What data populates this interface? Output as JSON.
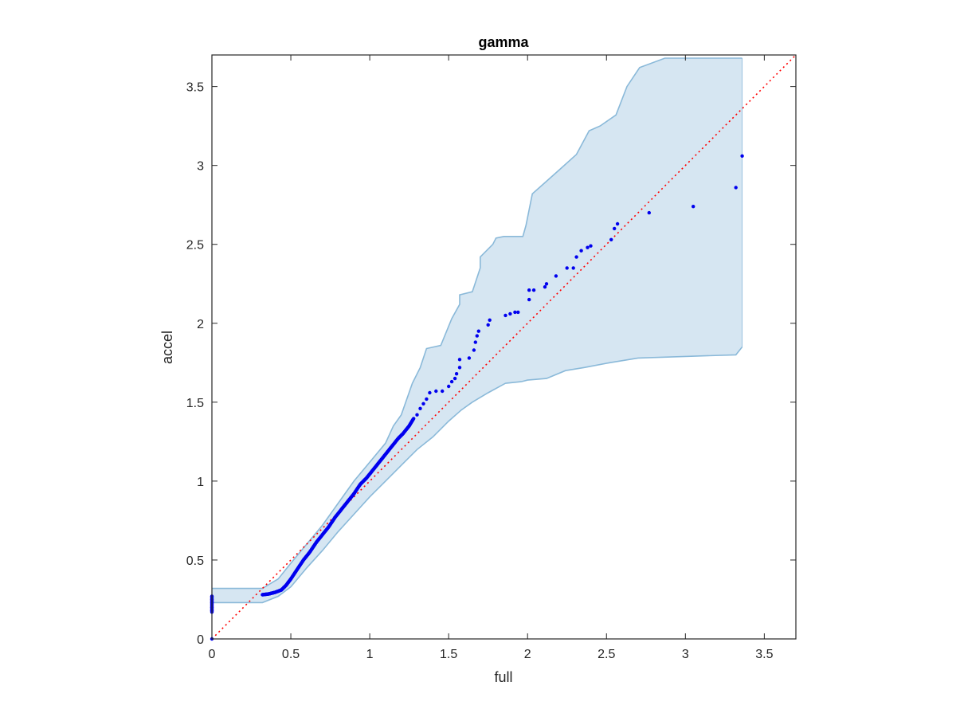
{
  "chart_data": {
    "type": "scatter",
    "title": "gamma",
    "xlabel": "full",
    "ylabel": "accel",
    "xlim": [
      0,
      3.7
    ],
    "ylim": [
      0,
      3.7
    ],
    "xticks": [
      0,
      0.5,
      1,
      1.5,
      2,
      2.5,
      3,
      3.5
    ],
    "yticks": [
      0,
      0.5,
      1,
      1.5,
      2,
      2.5,
      3,
      3.5
    ],
    "xtick_labels": [
      "0",
      "0.5",
      "1",
      "1.5",
      "2",
      "2.5",
      "3",
      "3.5"
    ],
    "ytick_labels": [
      "0",
      "0.5",
      "1",
      "1.5",
      "2",
      "2.5",
      "3",
      "3.5"
    ],
    "grid": false,
    "colors": {
      "points": "#0000ee",
      "band_fill": "#d6e6f2",
      "band_edge": "#8ab9d9",
      "reference_line": "#ff0000",
      "axes": "#262626"
    },
    "reference_line": {
      "style": "dotted",
      "from": [
        0,
        0
      ],
      "to": [
        3.7,
        3.7
      ]
    },
    "confidence_band": {
      "upper": [
        [
          0,
          0.32
        ],
        [
          0.32,
          0.32
        ],
        [
          0.42,
          0.38
        ],
        [
          0.5,
          0.48
        ],
        [
          0.6,
          0.6
        ],
        [
          0.7,
          0.72
        ],
        [
          0.8,
          0.86
        ],
        [
          0.9,
          1.0
        ],
        [
          1.0,
          1.12
        ],
        [
          1.1,
          1.24
        ],
        [
          1.15,
          1.35
        ],
        [
          1.2,
          1.42
        ],
        [
          1.27,
          1.62
        ],
        [
          1.32,
          1.72
        ],
        [
          1.36,
          1.84
        ],
        [
          1.45,
          1.86
        ],
        [
          1.52,
          2.03
        ],
        [
          1.57,
          2.12
        ],
        [
          1.57,
          2.18
        ],
        [
          1.65,
          2.2
        ],
        [
          1.7,
          2.35
        ],
        [
          1.7,
          2.42
        ],
        [
          1.78,
          2.5
        ],
        [
          1.8,
          2.54
        ],
        [
          1.85,
          2.55
        ],
        [
          1.97,
          2.55
        ],
        [
          1.99,
          2.62
        ],
        [
          2.01,
          2.72
        ],
        [
          2.03,
          2.82
        ],
        [
          2.12,
          2.9
        ],
        [
          2.21,
          2.98
        ],
        [
          2.31,
          3.07
        ],
        [
          2.39,
          3.22
        ],
        [
          2.46,
          3.25
        ],
        [
          2.56,
          3.32
        ],
        [
          2.63,
          3.5
        ],
        [
          2.71,
          3.62
        ],
        [
          2.87,
          3.68
        ],
        [
          3.36,
          3.68
        ]
      ],
      "lower": [
        [
          0,
          0.23
        ],
        [
          0.32,
          0.23
        ],
        [
          0.42,
          0.27
        ],
        [
          0.5,
          0.33
        ],
        [
          0.6,
          0.45
        ],
        [
          0.7,
          0.56
        ],
        [
          0.8,
          0.68
        ],
        [
          0.9,
          0.79
        ],
        [
          1.0,
          0.9
        ],
        [
          1.1,
          1.0
        ],
        [
          1.2,
          1.1
        ],
        [
          1.3,
          1.2
        ],
        [
          1.4,
          1.28
        ],
        [
          1.5,
          1.38
        ],
        [
          1.58,
          1.45
        ],
        [
          1.65,
          1.5
        ],
        [
          1.75,
          1.56
        ],
        [
          1.86,
          1.62
        ],
        [
          1.96,
          1.63
        ],
        [
          2.0,
          1.64
        ],
        [
          2.12,
          1.65
        ],
        [
          2.24,
          1.7
        ],
        [
          2.36,
          1.72
        ],
        [
          2.52,
          1.75
        ],
        [
          2.7,
          1.78
        ],
        [
          3.0,
          1.79
        ],
        [
          3.32,
          1.8
        ],
        [
          3.36,
          1.85
        ]
      ]
    },
    "scatter_curve": {
      "name": "dense points (sampled along the line of points)",
      "points": [
        [
          0.32,
          0.28
        ],
        [
          0.36,
          0.285
        ],
        [
          0.4,
          0.295
        ],
        [
          0.44,
          0.31
        ],
        [
          0.47,
          0.34
        ],
        [
          0.5,
          0.38
        ],
        [
          0.54,
          0.44
        ],
        [
          0.58,
          0.5
        ],
        [
          0.62,
          0.55
        ],
        [
          0.66,
          0.61
        ],
        [
          0.7,
          0.66
        ],
        [
          0.74,
          0.71
        ],
        [
          0.78,
          0.77
        ],
        [
          0.82,
          0.82
        ],
        [
          0.86,
          0.87
        ],
        [
          0.9,
          0.92
        ],
        [
          0.94,
          0.98
        ],
        [
          0.98,
          1.02
        ],
        [
          1.02,
          1.07
        ],
        [
          1.06,
          1.12
        ],
        [
          1.1,
          1.17
        ],
        [
          1.14,
          1.22
        ],
        [
          1.18,
          1.27
        ],
        [
          1.21,
          1.3
        ],
        [
          1.25,
          1.35
        ],
        [
          1.28,
          1.4
        ]
      ]
    },
    "scatter_points": [
      [
        0,
        0.18
      ],
      [
        0,
        0.2
      ],
      [
        0,
        0.23
      ],
      [
        0,
        0.25
      ],
      [
        0,
        0.27
      ],
      [
        0,
        0.0
      ],
      [
        1.3,
        1.42
      ],
      [
        1.32,
        1.46
      ],
      [
        1.34,
        1.49
      ],
      [
        1.36,
        1.52
      ],
      [
        1.38,
        1.56
      ],
      [
        1.42,
        1.57
      ],
      [
        1.46,
        1.57
      ],
      [
        1.5,
        1.6
      ],
      [
        1.52,
        1.63
      ],
      [
        1.54,
        1.65
      ],
      [
        1.55,
        1.68
      ],
      [
        1.57,
        1.72
      ],
      [
        1.57,
        1.77
      ],
      [
        1.63,
        1.78
      ],
      [
        1.66,
        1.83
      ],
      [
        1.67,
        1.88
      ],
      [
        1.68,
        1.92
      ],
      [
        1.69,
        1.95
      ],
      [
        1.75,
        1.99
      ],
      [
        1.76,
        2.02
      ],
      [
        1.86,
        2.05
      ],
      [
        1.89,
        2.06
      ],
      [
        1.92,
        2.07
      ],
      [
        1.94,
        2.07
      ],
      [
        2.01,
        2.15
      ],
      [
        2.01,
        2.21
      ],
      [
        2.04,
        2.21
      ],
      [
        2.11,
        2.23
      ],
      [
        2.12,
        2.25
      ],
      [
        2.18,
        2.3
      ],
      [
        2.25,
        2.35
      ],
      [
        2.29,
        2.35
      ],
      [
        2.31,
        2.42
      ],
      [
        2.34,
        2.46
      ],
      [
        2.38,
        2.48
      ],
      [
        2.4,
        2.49
      ],
      [
        2.53,
        2.53
      ],
      [
        2.55,
        2.6
      ],
      [
        2.57,
        2.63
      ],
      [
        2.77,
        2.7
      ],
      [
        3.05,
        2.74
      ],
      [
        3.32,
        2.86
      ],
      [
        3.36,
        3.06
      ]
    ]
  }
}
